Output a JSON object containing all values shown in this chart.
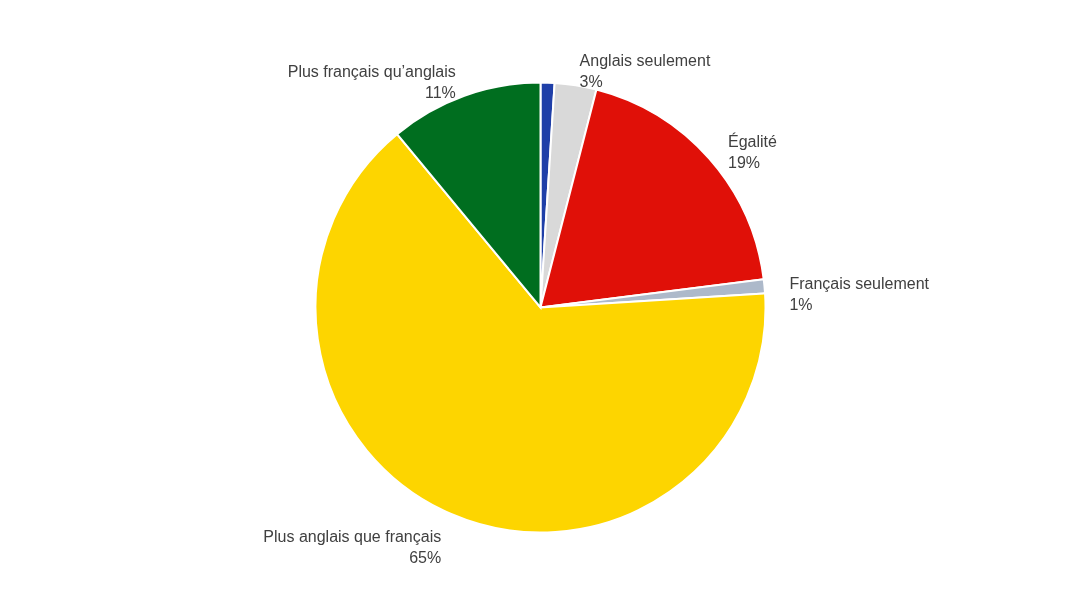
{
  "chart_data": {
    "type": "pie",
    "categories": [
      null,
      "Anglais seulement",
      "Égalité",
      "Français seulement",
      "Plus anglais que français",
      "Plus français qu’anglais"
    ],
    "values": [
      1,
      3,
      19,
      1,
      65,
      11
    ],
    "value_labels": [
      null,
      "3%",
      "19%",
      "1%",
      "65%",
      "11%"
    ],
    "colors": [
      "#1f3fa8",
      "#d9d9d9",
      "#e01008",
      "#adb9ca",
      "#fdd500",
      "#006e1f"
    ],
    "legend": false
  }
}
